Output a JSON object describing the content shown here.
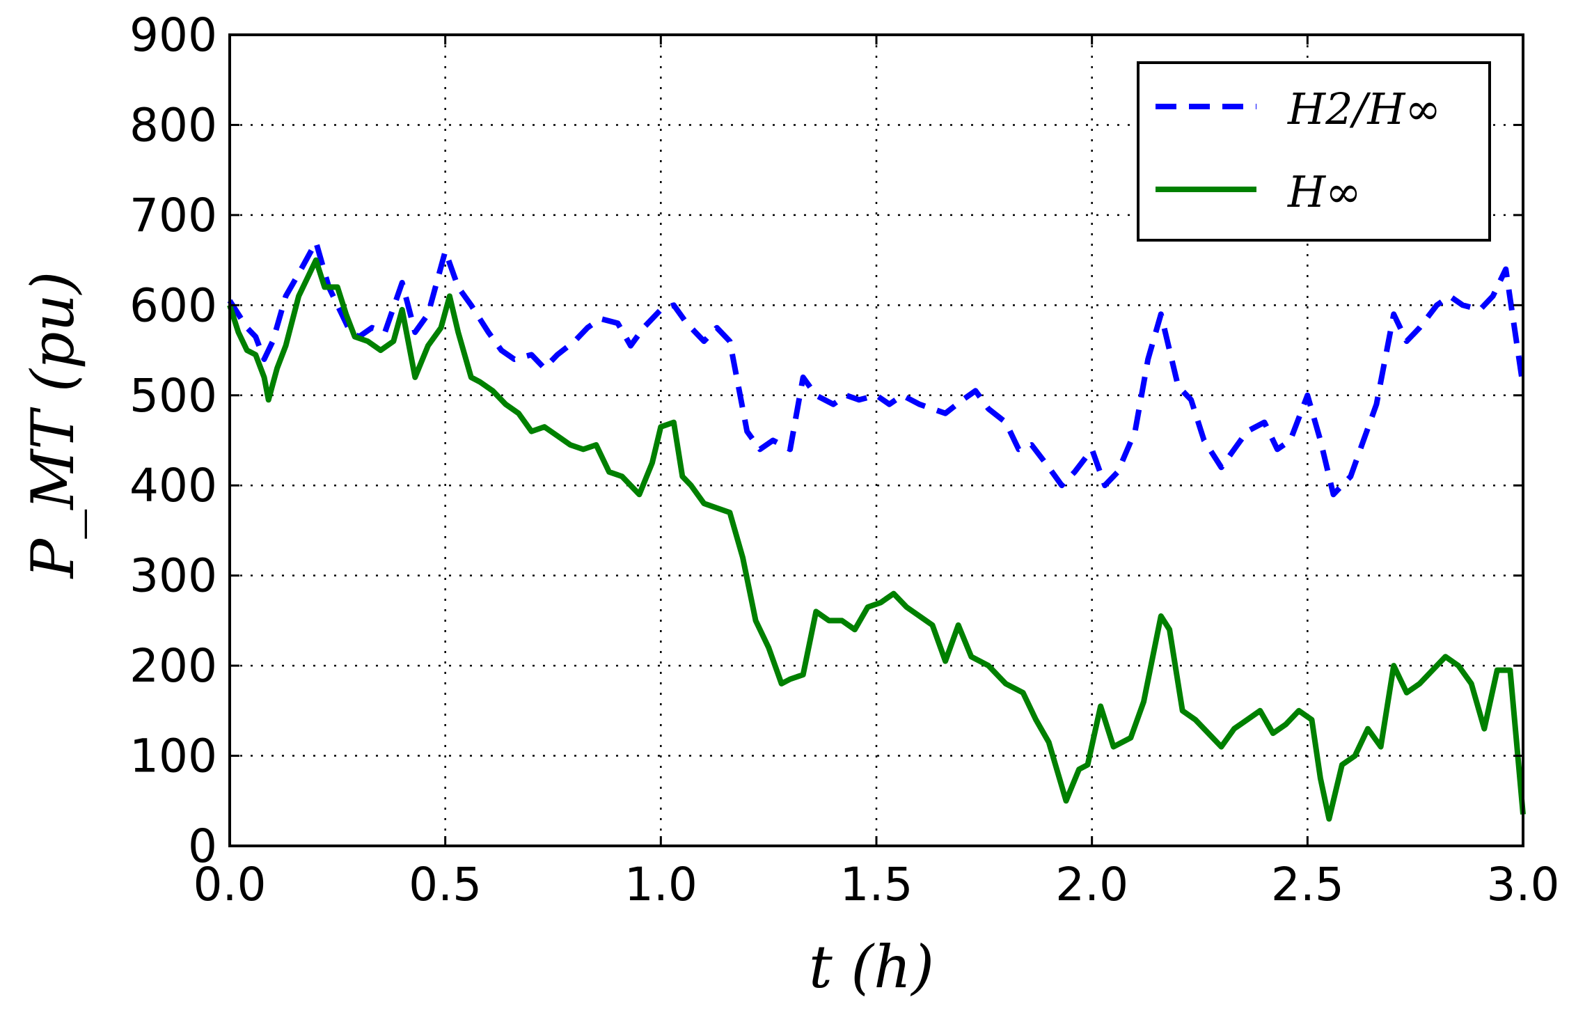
{
  "chart_data": {
    "type": "line",
    "xlabel": "t (h)",
    "ylabel": "P_MT (pu)",
    "xlim": [
      0.0,
      3.0
    ],
    "ylim": [
      0,
      900
    ],
    "xticks": [
      "0.0",
      "0.5",
      "1.0",
      "1.5",
      "2.0",
      "2.5",
      "3.0"
    ],
    "yticks": [
      "0",
      "100",
      "200",
      "300",
      "400",
      "500",
      "600",
      "700",
      "800",
      "900"
    ],
    "grid": true,
    "legend_position": "top-right",
    "series": [
      {
        "name": "H2/H∞",
        "color": "#0000ff",
        "style": "dashed",
        "x": [
          0.0,
          0.02,
          0.04,
          0.06,
          0.08,
          0.1,
          0.13,
          0.16,
          0.2,
          0.23,
          0.26,
          0.28,
          0.3,
          0.33,
          0.36,
          0.4,
          0.43,
          0.46,
          0.5,
          0.53,
          0.56,
          0.6,
          0.63,
          0.66,
          0.7,
          0.73,
          0.76,
          0.8,
          0.83,
          0.86,
          0.9,
          0.93,
          0.96,
          1.0,
          1.03,
          1.06,
          1.1,
          1.13,
          1.16,
          1.2,
          1.23,
          1.26,
          1.3,
          1.33,
          1.36,
          1.4,
          1.43,
          1.46,
          1.5,
          1.53,
          1.56,
          1.6,
          1.63,
          1.66,
          1.7,
          1.73,
          1.76,
          1.8,
          1.83,
          1.86,
          1.9,
          1.93,
          1.96,
          2.0,
          2.03,
          2.06,
          2.1,
          2.13,
          2.16,
          2.2,
          2.23,
          2.26,
          2.3,
          2.33,
          2.36,
          2.4,
          2.43,
          2.46,
          2.5,
          2.53,
          2.56,
          2.6,
          2.63,
          2.66,
          2.7,
          2.73,
          2.76,
          2.8,
          2.83,
          2.86,
          2.9,
          2.93,
          2.96,
          3.0
        ],
        "values": [
          605,
          590,
          575,
          565,
          540,
          560,
          610,
          635,
          670,
          620,
          590,
          570,
          565,
          575,
          570,
          625,
          570,
          590,
          660,
          620,
          600,
          570,
          550,
          540,
          545,
          530,
          545,
          560,
          575,
          585,
          580,
          555,
          575,
          595,
          600,
          580,
          560,
          575,
          560,
          460,
          440,
          450,
          440,
          520,
          500,
          490,
          500,
          495,
          500,
          490,
          500,
          490,
          485,
          480,
          495,
          505,
          485,
          470,
          440,
          445,
          420,
          400,
          415,
          440,
          400,
          415,
          460,
          540,
          590,
          510,
          495,
          450,
          420,
          440,
          460,
          470,
          440,
          450,
          500,
          450,
          390,
          410,
          450,
          490,
          590,
          560,
          575,
          600,
          610,
          600,
          595,
          610,
          640,
          510
        ]
      },
      {
        "name": "H∞",
        "color": "#008000",
        "style": "solid",
        "x": [
          0.0,
          0.02,
          0.04,
          0.06,
          0.08,
          0.09,
          0.11,
          0.13,
          0.16,
          0.18,
          0.2,
          0.22,
          0.25,
          0.27,
          0.29,
          0.32,
          0.35,
          0.38,
          0.4,
          0.43,
          0.46,
          0.49,
          0.51,
          0.53,
          0.56,
          0.58,
          0.61,
          0.64,
          0.67,
          0.7,
          0.73,
          0.76,
          0.79,
          0.82,
          0.85,
          0.88,
          0.91,
          0.95,
          0.98,
          1.0,
          1.03,
          1.05,
          1.07,
          1.1,
          1.13,
          1.16,
          1.19,
          1.22,
          1.25,
          1.28,
          1.3,
          1.33,
          1.36,
          1.39,
          1.42,
          1.45,
          1.48,
          1.51,
          1.54,
          1.57,
          1.6,
          1.63,
          1.66,
          1.69,
          1.72,
          1.76,
          1.8,
          1.84,
          1.87,
          1.9,
          1.94,
          1.97,
          1.99,
          2.02,
          2.05,
          2.09,
          2.12,
          2.16,
          2.18,
          2.21,
          2.24,
          2.27,
          2.3,
          2.33,
          2.36,
          2.39,
          2.42,
          2.45,
          2.48,
          2.51,
          2.53,
          2.55,
          2.58,
          2.61,
          2.64,
          2.67,
          2.7,
          2.73,
          2.76,
          2.79,
          2.82,
          2.85,
          2.88,
          2.91,
          2.94,
          2.97,
          3.0
        ],
        "values": [
          600,
          570,
          550,
          545,
          520,
          495,
          530,
          555,
          610,
          630,
          650,
          620,
          620,
          590,
          565,
          560,
          550,
          560,
          595,
          520,
          555,
          575,
          610,
          570,
          520,
          515,
          505,
          490,
          480,
          460,
          465,
          455,
          445,
          440,
          445,
          415,
          410,
          390,
          425,
          465,
          470,
          410,
          400,
          380,
          375,
          370,
          320,
          250,
          220,
          180,
          185,
          190,
          260,
          250,
          250,
          240,
          265,
          270,
          280,
          265,
          255,
          245,
          205,
          245,
          210,
          200,
          180,
          170,
          140,
          115,
          50,
          85,
          90,
          155,
          110,
          120,
          160,
          255,
          240,
          150,
          140,
          125,
          110,
          130,
          140,
          150,
          125,
          135,
          150,
          140,
          75,
          30,
          90,
          100,
          130,
          110,
          200,
          170,
          180,
          195,
          210,
          200,
          180,
          130,
          195,
          195,
          35
        ]
      }
    ]
  }
}
